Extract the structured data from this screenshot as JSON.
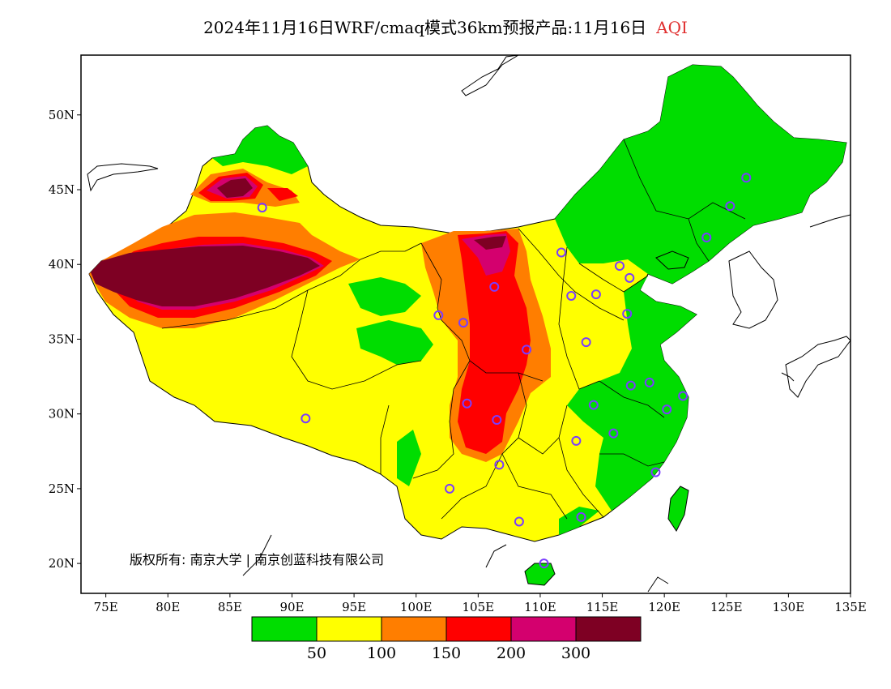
{
  "header": {
    "title": "2024年11月16日WRF/cmaq模式36km预报产品:11月16日",
    "variable": "AQI"
  },
  "map": {
    "lon_ticks": [
      "75E",
      "80E",
      "85E",
      "90E",
      "95E",
      "100E",
      "105E",
      "110E",
      "115E",
      "120E",
      "125E",
      "130E",
      "135E"
    ],
    "lat_ticks": [
      "50N",
      "45N",
      "40N",
      "35N",
      "30N",
      "25N",
      "20N"
    ],
    "copyright": "版权所有: 南京大学 | 南京创蓝科技有限公司"
  },
  "legend": {
    "colors": [
      "#00dd00",
      "#ffff00",
      "#ff7e00",
      "#ff0000",
      "#d4006e",
      "#7e0023"
    ],
    "labels": [
      "50",
      "100",
      "150",
      "200",
      "300"
    ]
  },
  "stations": [
    {
      "lon": 87.6,
      "lat": 43.8
    },
    {
      "lon": 91.1,
      "lat": 29.7
    },
    {
      "lon": 101.8,
      "lat": 36.6
    },
    {
      "lon": 103.8,
      "lat": 36.1
    },
    {
      "lon": 106.3,
      "lat": 38.5
    },
    {
      "lon": 111.7,
      "lat": 40.8
    },
    {
      "lon": 112.5,
      "lat": 37.9
    },
    {
      "lon": 114.5,
      "lat": 38.0
    },
    {
      "lon": 116.4,
      "lat": 39.9
    },
    {
      "lon": 117.2,
      "lat": 39.1
    },
    {
      "lon": 117.0,
      "lat": 36.7
    },
    {
      "lon": 113.7,
      "lat": 34.8
    },
    {
      "lon": 108.9,
      "lat": 34.3
    },
    {
      "lon": 104.1,
      "lat": 30.7
    },
    {
      "lon": 106.5,
      "lat": 29.6
    },
    {
      "lon": 106.7,
      "lat": 26.6
    },
    {
      "lon": 102.7,
      "lat": 25.0
    },
    {
      "lon": 108.3,
      "lat": 22.8
    },
    {
      "lon": 113.3,
      "lat": 23.1
    },
    {
      "lon": 110.3,
      "lat": 20.0
    },
    {
      "lon": 112.9,
      "lat": 28.2
    },
    {
      "lon": 114.3,
      "lat": 30.6
    },
    {
      "lon": 115.9,
      "lat": 28.7
    },
    {
      "lon": 117.3,
      "lat": 31.9
    },
    {
      "lon": 118.8,
      "lat": 32.1
    },
    {
      "lon": 120.2,
      "lat": 30.3
    },
    {
      "lon": 121.5,
      "lat": 31.2
    },
    {
      "lon": 119.3,
      "lat": 26.1
    },
    {
      "lon": 123.4,
      "lat": 41.8
    },
    {
      "lon": 125.3,
      "lat": 43.9
    },
    {
      "lon": 126.6,
      "lat": 45.8
    }
  ]
}
